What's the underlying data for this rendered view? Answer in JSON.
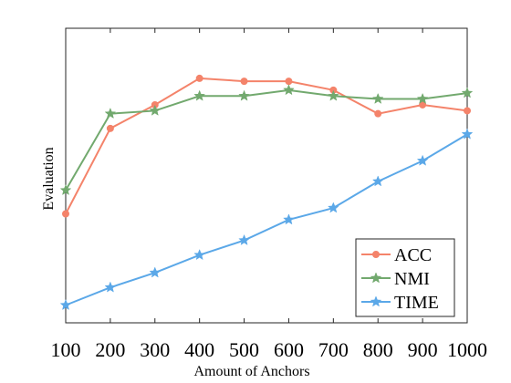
{
  "chart_data": {
    "type": "line",
    "title": "",
    "xlabel": "Amount of Anchors",
    "ylabel": "Evaluation",
    "x": [
      100,
      200,
      300,
      400,
      500,
      600,
      700,
      800,
      900,
      1000
    ],
    "x_tick_labels": [
      "100",
      "200",
      "300",
      "400",
      "500",
      "600",
      "700",
      "800",
      "900",
      "1000"
    ],
    "ylim": [
      0,
      1
    ],
    "y_ticks_shown": false,
    "grid": false,
    "legend_position": "bottom-right",
    "series": [
      {
        "name": "ACC",
        "color": "#F4836A",
        "marker": "circle",
        "values": [
          0.37,
          0.66,
          0.74,
          0.83,
          0.82,
          0.82,
          0.79,
          0.71,
          0.74,
          0.72
        ]
      },
      {
        "name": "NMI",
        "color": "#72A96E",
        "marker": "star",
        "values": [
          0.45,
          0.71,
          0.72,
          0.77,
          0.77,
          0.79,
          0.77,
          0.76,
          0.76,
          0.78
        ]
      },
      {
        "name": "TIME",
        "color": "#5BA8E8",
        "marker": "star",
        "values": [
          0.06,
          0.12,
          0.17,
          0.23,
          0.28,
          0.35,
          0.39,
          0.48,
          0.55,
          0.64
        ]
      }
    ]
  }
}
